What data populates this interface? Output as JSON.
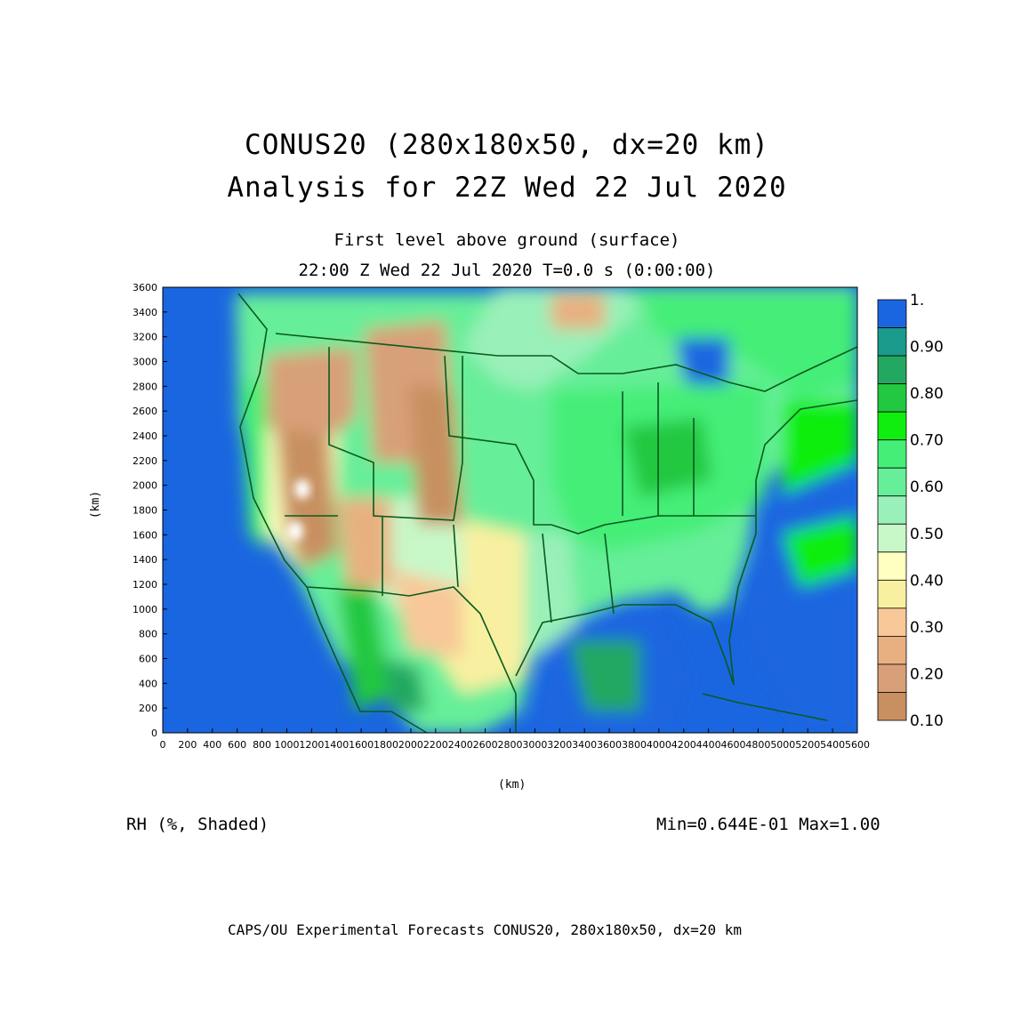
{
  "header": {
    "title_line1": "CONUS20 (280x180x50, dx=20 km)",
    "title_line2": "Analysis for 22Z Wed 22 Jul 2020",
    "level": "First level above ground (surface)",
    "valid_time": "22:00 Z Wed 22 Jul 2020   T=0.0 s (0:00:00)"
  },
  "map": {
    "x_axis_label": "(km)",
    "y_axis_label": "(km)",
    "x_ticks": [
      "0",
      "200",
      "400",
      "600",
      "800",
      "1000",
      "1200",
      "1400",
      "1600",
      "1800",
      "2000",
      "2200",
      "2400",
      "2600",
      "2800",
      "3000",
      "3200",
      "3400",
      "3600",
      "3800",
      "4000",
      "4200",
      "4400",
      "4600",
      "4800",
      "5000",
      "5200",
      "5400",
      "5600"
    ],
    "y_ticks": [
      "0",
      "200",
      "400",
      "600",
      "800",
      "1000",
      "1200",
      "1400",
      "1600",
      "1800",
      "2000",
      "2200",
      "2400",
      "2600",
      "2800",
      "3000",
      "3200",
      "3400",
      "3600"
    ],
    "x_range": [
      0,
      5600
    ],
    "y_range": [
      0,
      3600
    ]
  },
  "legend": {
    "labels": [
      "1.",
      "0.90",
      "0.80",
      "0.70",
      "0.60",
      "0.50",
      "0.40",
      "0.30",
      "0.20",
      "0.10"
    ],
    "colors": [
      "#1a66e0",
      "#1a9a8a",
      "#22a860",
      "#22c840",
      "#10ee10",
      "#44ee77",
      "#66ee99",
      "#99f0b8",
      "#c8f8c8",
      "#ffffc0",
      "#f8f0a0",
      "#f8c898",
      "#e8b080",
      "#d8a078",
      "#c89060"
    ]
  },
  "footer": {
    "field_label": "RH (%, Shaded)",
    "minmax": "Min=0.644E-01 Max=1.00",
    "credit": "CAPS/OU Experimental Forecasts  CONUS20, 280x180x50, dx=20 km"
  }
}
